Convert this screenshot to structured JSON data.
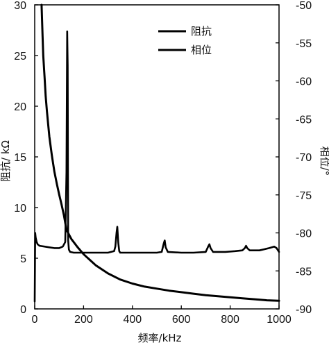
{
  "chart_data": {
    "type": "line",
    "title": "",
    "xlabel": "频率/kHz",
    "ylabel_left": "阻抗/ kΩ",
    "ylabel_right": "相位/°",
    "xlim": [
      0,
      1000
    ],
    "ylim_left": [
      0,
      30
    ],
    "ylim_right": [
      -90,
      -50
    ],
    "xticks": [
      "0",
      "200",
      "400",
      "600",
      "800",
      "1000"
    ],
    "yticks_left": [
      "0",
      "5",
      "10",
      "15",
      "20",
      "25",
      "30"
    ],
    "yticks_right": [
      "-50",
      "-55",
      "-60",
      "-65",
      "-70",
      "-75",
      "-80",
      "-85",
      "-90"
    ],
    "grid": false,
    "legend": {
      "placement": "top-right",
      "entries": [
        "阻抗",
        "相位"
      ]
    },
    "series": [
      {
        "name": "阻抗",
        "axis": "left",
        "color": "#000000",
        "x": [
          28,
          32,
          35,
          40,
          45,
          50,
          60,
          70,
          80,
          90,
          100,
          110,
          120,
          130,
          150,
          175,
          200,
          250,
          300,
          350,
          400,
          450,
          500,
          550,
          600,
          650,
          700,
          750,
          800,
          850,
          900,
          950,
          1000
        ],
        "y": [
          30,
          27,
          25,
          23,
          21,
          19.5,
          17,
          15.2,
          13.6,
          12.4,
          11.3,
          10.3,
          9.2,
          7.8,
          6.9,
          6.1,
          5.4,
          4.3,
          3.5,
          2.9,
          2.5,
          2.2,
          2.0,
          1.8,
          1.65,
          1.5,
          1.35,
          1.25,
          1.15,
          1.05,
          0.95,
          0.85,
          0.8
        ]
      },
      {
        "name": "相位",
        "axis": "right",
        "color": "#000000",
        "x": [
          0,
          2,
          4,
          8,
          12,
          20,
          40,
          60,
          80,
          100,
          115,
          125,
          130,
          133,
          135,
          137,
          140,
          145,
          160,
          200,
          250,
          300,
          325,
          330,
          335,
          338,
          342,
          346,
          350,
          400,
          450,
          500,
          520,
          528,
          532,
          536,
          545,
          600,
          650,
          700,
          710,
          715,
          720,
          730,
          780,
          820,
          850,
          860,
          865,
          870,
          880,
          920,
          960,
          980,
          990,
          1000
        ],
        "y": [
          -89,
          -80,
          -80.6,
          -81.2,
          -81.5,
          -81.7,
          -81.8,
          -81.9,
          -82,
          -82,
          -81.8,
          -81.2,
          -72,
          -53.5,
          -58,
          -81,
          -82.2,
          -82.5,
          -82.6,
          -82.6,
          -82.6,
          -82.6,
          -82.4,
          -81.8,
          -80,
          -79.2,
          -81.3,
          -82.4,
          -82.6,
          -82.6,
          -82.6,
          -82.6,
          -82.5,
          -81.4,
          -81,
          -81.9,
          -82.5,
          -82.6,
          -82.6,
          -82.5,
          -81.8,
          -81.5,
          -82,
          -82.5,
          -82.5,
          -82.4,
          -82.3,
          -82.0,
          -81.7,
          -82.0,
          -82.3,
          -82.3,
          -82.0,
          -81.8,
          -82.0,
          -82.5
        ]
      }
    ]
  }
}
